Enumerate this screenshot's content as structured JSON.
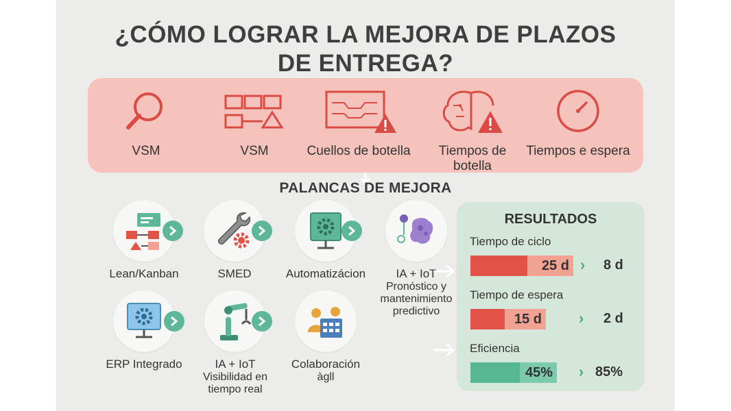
{
  "title_line1": "¿CÓMO LOGRAR LA MEJORA DE PLAZOS",
  "title_line2": "DE ENTREGA?",
  "problems": [
    {
      "icon": "magnifier-icon",
      "label": "VSM"
    },
    {
      "icon": "process-map-icon",
      "label": "VSM"
    },
    {
      "icon": "bottleneck-warning-icon",
      "label": "Cuellos de botella"
    },
    {
      "icon": "brain-warning-icon",
      "label_line1": "Tiempos de",
      "label_line2": "botella"
    },
    {
      "icon": "clock-icon",
      "label": "Tiempos e espera"
    }
  ],
  "levers_title": "PALANCAS DE MEJORA",
  "levers_row1": [
    {
      "icon": "kanban-flow-icon",
      "label": "Lean/Kanban"
    },
    {
      "icon": "wrench-gear-icon",
      "label": "SMED"
    },
    {
      "icon": "monitor-gear-icon",
      "label": "Automatizácion"
    },
    {
      "icon": "ai-brain-icon",
      "label": "IA + IoT",
      "sub_line1": "Pronóstico y",
      "sub_line2": "mantenimiento",
      "sub_line3": "predictivo"
    }
  ],
  "levers_row2": [
    {
      "icon": "erp-monitor-icon",
      "label": "ERP Integrado"
    },
    {
      "icon": "robot-arm-icon",
      "label": "IA + IoT",
      "sub_line1": "Visibilidad en",
      "sub_line2": "tiempo real"
    },
    {
      "icon": "team-calendar-icon",
      "label": "Colaboración",
      "sub_line1": "àgll"
    }
  ],
  "results": {
    "title": "RESULTADOS",
    "metrics": [
      {
        "label": "Tiempo de ciclo",
        "before": "25 d",
        "after": "8 d",
        "before_fraction": 0.55,
        "color_dark": "#e35246",
        "color_light": "#f2a292"
      },
      {
        "label": "Tiempo de espera",
        "before": "15 d",
        "after": "2 d",
        "before_fraction": 0.45,
        "color_dark": "#e35246",
        "color_light": "#f2a292"
      },
      {
        "label": "Eficiencia",
        "before": "45%",
        "after": "85%",
        "before_fraction": 0.57,
        "color_dark": "#55b794",
        "color_light": "#7ccaae"
      }
    ]
  },
  "colors": {
    "problem_red": "#d94c45",
    "accent_green": "#5fb79a",
    "panel_pink": "#f6c3bc",
    "panel_green": "#d5e6da"
  }
}
